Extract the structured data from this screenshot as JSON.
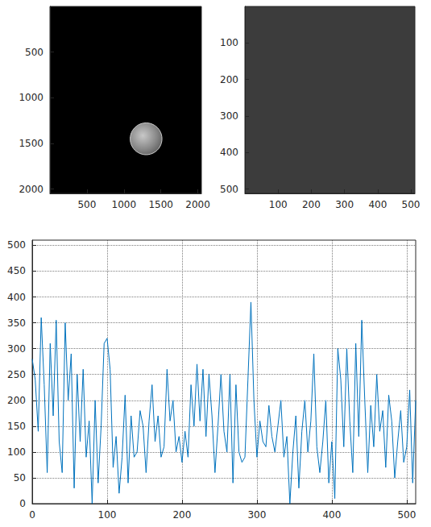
{
  "chart_data": [
    {
      "type": "image",
      "xlim": [
        0,
        2048
      ],
      "ylim": [
        0,
        2048
      ],
      "xticks": [
        500,
        1000,
        1500,
        2000
      ],
      "yticks": [
        500,
        1000,
        1500,
        2000
      ],
      "circle": {
        "center": [
          1300,
          1450
        ],
        "radius": 215
      }
    },
    {
      "type": "image",
      "xlim": [
        0,
        512
      ],
      "ylim": [
        0,
        512
      ],
      "xticks": [
        100,
        200,
        300,
        400,
        500
      ],
      "yticks": [
        100,
        200,
        300,
        400,
        500
      ]
    },
    {
      "type": "line",
      "color": "#0072bd",
      "grid": true,
      "xlim": [
        0,
        512
      ],
      "ylim": [
        0,
        510
      ],
      "xticks": [
        0,
        100,
        200,
        300,
        400,
        500
      ],
      "yticks": [
        0,
        50,
        100,
        150,
        200,
        250,
        300,
        350,
        400,
        450,
        500
      ],
      "x": [
        0,
        4,
        8,
        12,
        16,
        20,
        24,
        28,
        32,
        36,
        40,
        44,
        48,
        52,
        56,
        60,
        64,
        68,
        72,
        76,
        80,
        84,
        88,
        92,
        96,
        100,
        104,
        108,
        112,
        116,
        120,
        124,
        128,
        132,
        136,
        140,
        144,
        148,
        152,
        156,
        160,
        164,
        168,
        172,
        176,
        180,
        184,
        188,
        192,
        196,
        200,
        204,
        208,
        212,
        216,
        220,
        224,
        228,
        232,
        236,
        240,
        244,
        248,
        252,
        256,
        260,
        264,
        268,
        272,
        276,
        280,
        284,
        288,
        292,
        296,
        300,
        304,
        308,
        312,
        316,
        320,
        324,
        328,
        332,
        336,
        340,
        344,
        348,
        352,
        356,
        360,
        364,
        368,
        372,
        376,
        380,
        384,
        388,
        392,
        396,
        400,
        404,
        408,
        412,
        416,
        420,
        424,
        428,
        432,
        436,
        440,
        444,
        448,
        452,
        456,
        460,
        464,
        468,
        472,
        476,
        480,
        484,
        488,
        492,
        496,
        500,
        504,
        508,
        512
      ],
      "values": [
        280,
        240,
        140,
        360,
        230,
        60,
        310,
        170,
        355,
        120,
        60,
        350,
        200,
        290,
        30,
        250,
        120,
        260,
        90,
        160,
        0,
        200,
        40,
        150,
        310,
        320,
        260,
        70,
        130,
        20,
        90,
        210,
        40,
        170,
        90,
        100,
        180,
        150,
        60,
        160,
        230,
        120,
        170,
        90,
        110,
        260,
        160,
        200,
        100,
        130,
        80,
        140,
        90,
        230,
        150,
        270,
        160,
        260,
        130,
        250,
        170,
        60,
        150,
        250,
        140,
        100,
        250,
        40,
        230,
        100,
        80,
        90,
        240,
        390,
        200,
        90,
        160,
        120,
        110,
        190,
        130,
        100,
        150,
        200,
        90,
        130,
        0,
        100,
        170,
        30,
        140,
        200,
        100,
        160,
        290,
        110,
        60,
        120,
        200,
        40,
        120,
        10,
        300,
        240,
        110,
        300,
        160,
        60,
        310,
        130,
        355,
        200,
        60,
        190,
        110,
        250,
        140,
        180,
        70,
        210,
        160,
        50,
        120,
        180,
        80,
        110,
        220,
        40,
        200
      ]
    }
  ]
}
